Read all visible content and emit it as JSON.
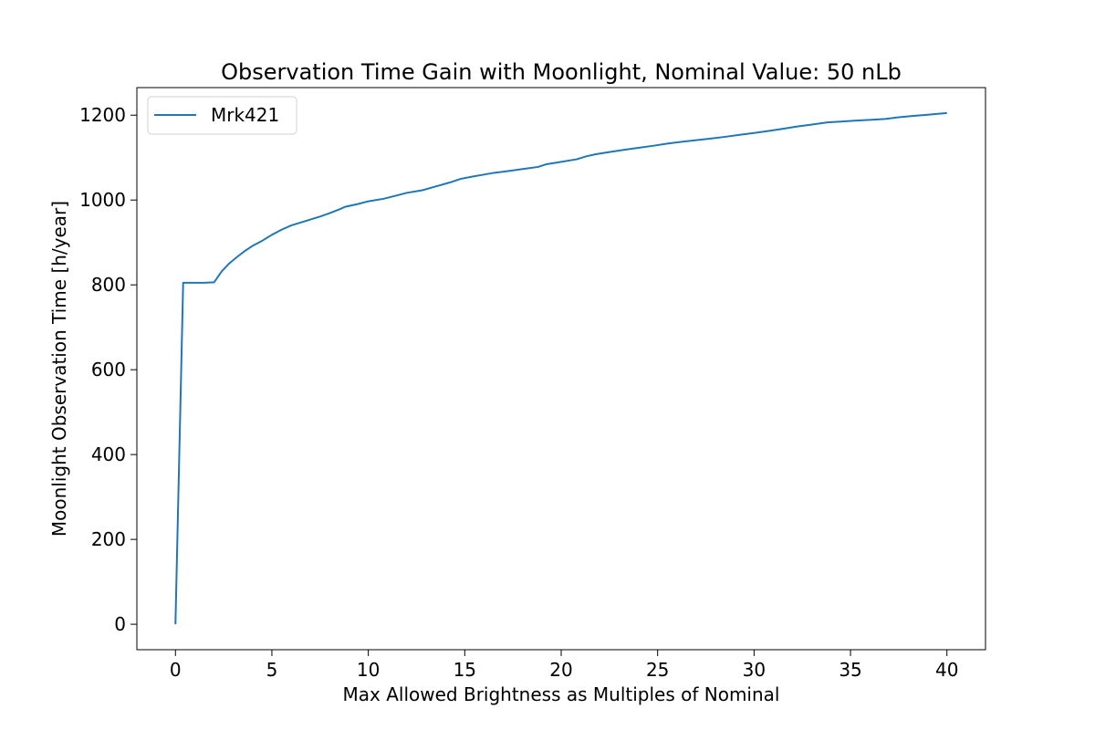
{
  "chart_data": {
    "type": "line",
    "title": "Observation Time Gain with Moonlight, Nominal Value: 50 nLb",
    "xlabel": "Max Allowed Brightness as Multiples of Nominal",
    "ylabel": "Moonlight Observation Time [h/year]",
    "xlim": [
      -2,
      42
    ],
    "ylim": [
      -60,
      1265
    ],
    "xticks": [
      0,
      5,
      10,
      15,
      20,
      25,
      30,
      35,
      40
    ],
    "yticks": [
      0,
      200,
      400,
      600,
      800,
      1000,
      1200
    ],
    "grid": false,
    "legend": "upper left",
    "series": [
      {
        "name": "Mrk421",
        "color": "#1f77b4",
        "x": [
          0,
          0.4,
          1.0,
          1.5,
          2.0,
          2.4,
          2.8,
          3.2,
          3.6,
          4.0,
          4.5,
          5.0,
          5.5,
          6.0,
          6.5,
          7.0,
          7.5,
          8.0,
          8.5,
          8.8,
          9.5,
          10.0,
          10.8,
          11.5,
          12.0,
          12.8,
          13.5,
          14.2,
          14.8,
          15.5,
          16.0,
          16.5,
          17.2,
          18.0,
          18.8,
          19.2,
          20.0,
          20.8,
          21.3,
          21.8,
          22.5,
          23.2,
          24.0,
          24.8,
          25.5,
          26.2,
          27.0,
          27.8,
          28.5,
          29.3,
          30.0,
          30.8,
          31.5,
          32.2,
          33.0,
          33.8,
          34.5,
          35.2,
          36.0,
          36.8,
          37.5,
          38.2,
          39.0,
          40.0
        ],
        "y": [
          0,
          805,
          805,
          805,
          806,
          832,
          851,
          866,
          880,
          892,
          904,
          918,
          930,
          940,
          947,
          954,
          961,
          969,
          978,
          984,
          991,
          997,
          1003,
          1011,
          1017,
          1023,
          1032,
          1041,
          1050,
          1056,
          1060,
          1064,
          1068,
          1073,
          1078,
          1084,
          1090,
          1096,
          1103,
          1108,
          1113,
          1118,
          1123,
          1128,
          1133,
          1137,
          1141,
          1145,
          1149,
          1154,
          1158,
          1163,
          1168,
          1173,
          1178,
          1183,
          1185,
          1187,
          1189,
          1191,
          1195,
          1198,
          1201,
          1205
        ]
      }
    ]
  }
}
